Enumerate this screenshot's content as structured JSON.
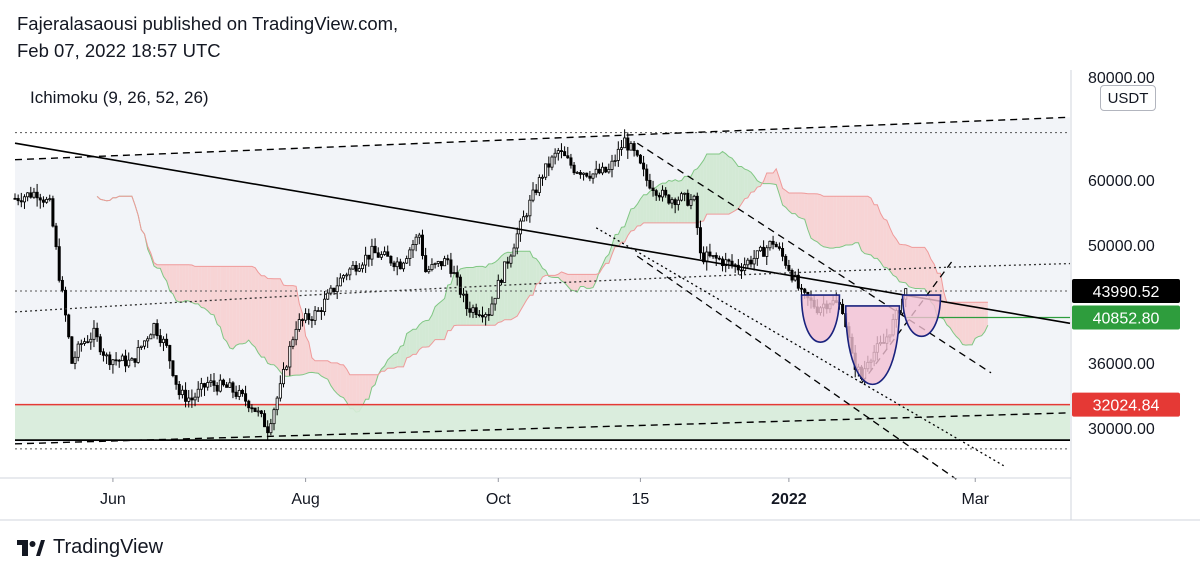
{
  "header": {
    "published_line": "Fajeralasaousi published on TradingView.com,",
    "date_line": "Feb 07, 2022 18:57 UTC"
  },
  "indicator": {
    "legend": "Ichimoku (9, 26, 52, 26)"
  },
  "price_axis": {
    "unit": "USDT",
    "ticks": [
      "80000.00",
      "60000.00",
      "50000.00",
      "36000.00",
      "30000.00"
    ]
  },
  "price_tags": [
    {
      "label": "43990.52",
      "value": 43990.52,
      "color": "#000000"
    },
    {
      "label": "40852.80",
      "value": 40852.8,
      "color": "#2e9d3d"
    },
    {
      "label": "32024.84",
      "value": 32024.84,
      "color": "#e53935"
    }
  ],
  "time_axis": {
    "ticks": [
      "Jun",
      "Aug",
      "Oct",
      "15",
      "2022",
      "Mar"
    ],
    "bold": [
      "2022"
    ]
  },
  "footer": {
    "brand": "TradingView"
  },
  "chart_data": {
    "type": "candlestick",
    "symbol_quote": "USDT",
    "y_scale": "log",
    "ylim": [
      26000,
      80000
    ],
    "x_range": [
      "2021-05-01",
      "2022-03-31"
    ],
    "price_path": [
      [
        "2021-05-01",
        57000
      ],
      [
        "2021-05-08",
        58000
      ],
      [
        "2021-05-12",
        56000
      ],
      [
        "2021-05-15",
        46000
      ],
      [
        "2021-05-19",
        36000
      ],
      [
        "2021-05-22",
        38000
      ],
      [
        "2021-05-26",
        39000
      ],
      [
        "2021-05-30",
        36500
      ],
      [
        "2021-06-07",
        36000
      ],
      [
        "2021-06-14",
        40000
      ],
      [
        "2021-06-18",
        37500
      ],
      [
        "2021-06-22",
        33000
      ],
      [
        "2021-06-26",
        32500
      ],
      [
        "2021-07-01",
        34000
      ],
      [
        "2021-07-08",
        33500
      ],
      [
        "2021-07-15",
        32000
      ],
      [
        "2021-07-20",
        30000
      ],
      [
        "2021-07-24",
        33500
      ],
      [
        "2021-07-29",
        40000
      ],
      [
        "2021-08-05",
        41500
      ],
      [
        "2021-08-13",
        46000
      ],
      [
        "2021-08-22",
        49000
      ],
      [
        "2021-08-31",
        47500
      ],
      [
        "2021-09-06",
        51500
      ],
      [
        "2021-09-08",
        46500
      ],
      [
        "2021-09-15",
        48000
      ],
      [
        "2021-09-21",
        42000
      ],
      [
        "2021-09-28",
        41500
      ],
      [
        "2021-10-04",
        48000
      ],
      [
        "2021-10-10",
        55000
      ],
      [
        "2021-10-15",
        61000
      ],
      [
        "2021-10-20",
        65000
      ],
      [
        "2021-10-25",
        62000
      ],
      [
        "2021-10-31",
        61000
      ],
      [
        "2021-11-05",
        61500
      ],
      [
        "2021-11-10",
        67000
      ],
      [
        "2021-11-13",
        64500
      ],
      [
        "2021-11-17",
        60000
      ],
      [
        "2021-11-23",
        57000
      ],
      [
        "2021-11-28",
        57000
      ],
      [
        "2021-12-02",
        56500
      ],
      [
        "2021-12-04",
        48500
      ],
      [
        "2021-12-10",
        48000
      ],
      [
        "2021-12-16",
        47000
      ],
      [
        "2021-12-22",
        48500
      ],
      [
        "2021-12-27",
        50500
      ],
      [
        "2022-01-01",
        47000
      ],
      [
        "2022-01-05",
        43500
      ],
      [
        "2022-01-10",
        42000
      ],
      [
        "2022-01-14",
        42800
      ],
      [
        "2022-01-18",
        42000
      ],
      [
        "2022-01-21",
        36500
      ],
      [
        "2022-01-24",
        34500
      ],
      [
        "2022-01-26",
        36500
      ],
      [
        "2022-01-31",
        38000
      ],
      [
        "2022-02-04",
        41000
      ],
      [
        "2022-02-07",
        43990.52
      ]
    ],
    "horizontal_levels": [
      {
        "value": 43990.52,
        "label": "43990.52"
      },
      {
        "value": 40852.8,
        "label": "40852.80"
      },
      {
        "value": 32024.84,
        "label": "32024.84"
      },
      {
        "value": 29000
      },
      {
        "value": 68500
      }
    ],
    "annotations": [
      "Ichimoku cloud",
      "descending trendline",
      "channel lines",
      "inverse head and shoulders pattern"
    ]
  }
}
